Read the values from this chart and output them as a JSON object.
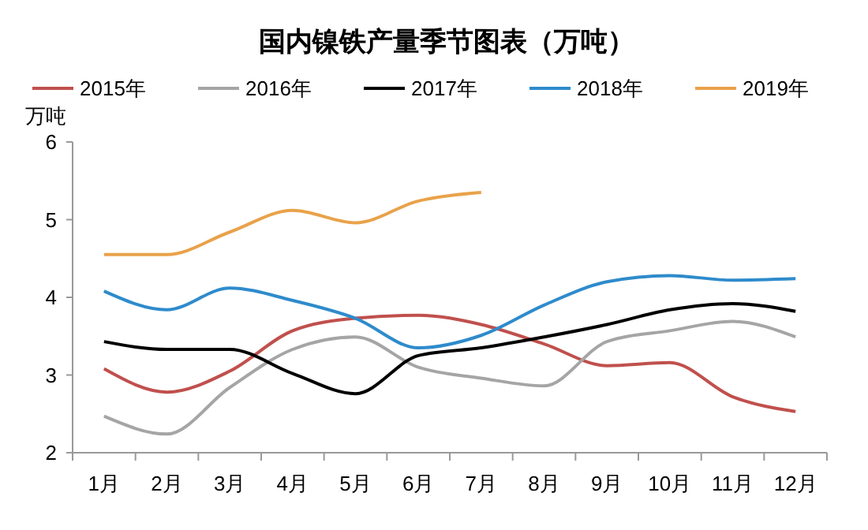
{
  "chart_data": {
    "type": "line",
    "title": "国内镍铁产量季节图表（万吨）",
    "ylabel": "万吨",
    "categories": [
      "1月",
      "2月",
      "3月",
      "4月",
      "5月",
      "6月",
      "7月",
      "8月",
      "9月",
      "10月",
      "11月",
      "12月"
    ],
    "series": [
      {
        "name": "2015年",
        "color": "#c0504d",
        "values": [
          3.08,
          2.78,
          3.05,
          3.57,
          3.73,
          3.77,
          3.65,
          3.4,
          3.12,
          3.16,
          2.72,
          2.53
        ]
      },
      {
        "name": "2016年",
        "color": "#a5a5a5",
        "values": [
          2.47,
          2.24,
          2.84,
          3.33,
          3.49,
          3.1,
          2.96,
          2.86,
          3.43,
          3.57,
          3.69,
          3.49
        ]
      },
      {
        "name": "2017年",
        "color": "#000000",
        "values": [
          3.43,
          3.33,
          3.33,
          3.02,
          2.76,
          3.25,
          3.35,
          3.49,
          3.65,
          3.84,
          3.92,
          3.82
        ]
      },
      {
        "name": "2018年",
        "color": "#2e8bcc",
        "values": [
          4.08,
          3.84,
          4.12,
          3.96,
          3.73,
          3.35,
          3.51,
          3.9,
          4.2,
          4.28,
          4.22,
          4.24
        ]
      },
      {
        "name": "2019年",
        "color": "#e9a24a",
        "values": [
          4.55,
          4.55,
          4.84,
          5.12,
          4.96,
          5.24,
          5.35,
          null,
          null,
          null,
          null,
          null
        ]
      }
    ],
    "ylim": [
      2,
      6
    ],
    "yticks": [
      2,
      3,
      4,
      5,
      6
    ],
    "grid": false,
    "legend": "top",
    "marker": "none",
    "line_style": "solid"
  }
}
